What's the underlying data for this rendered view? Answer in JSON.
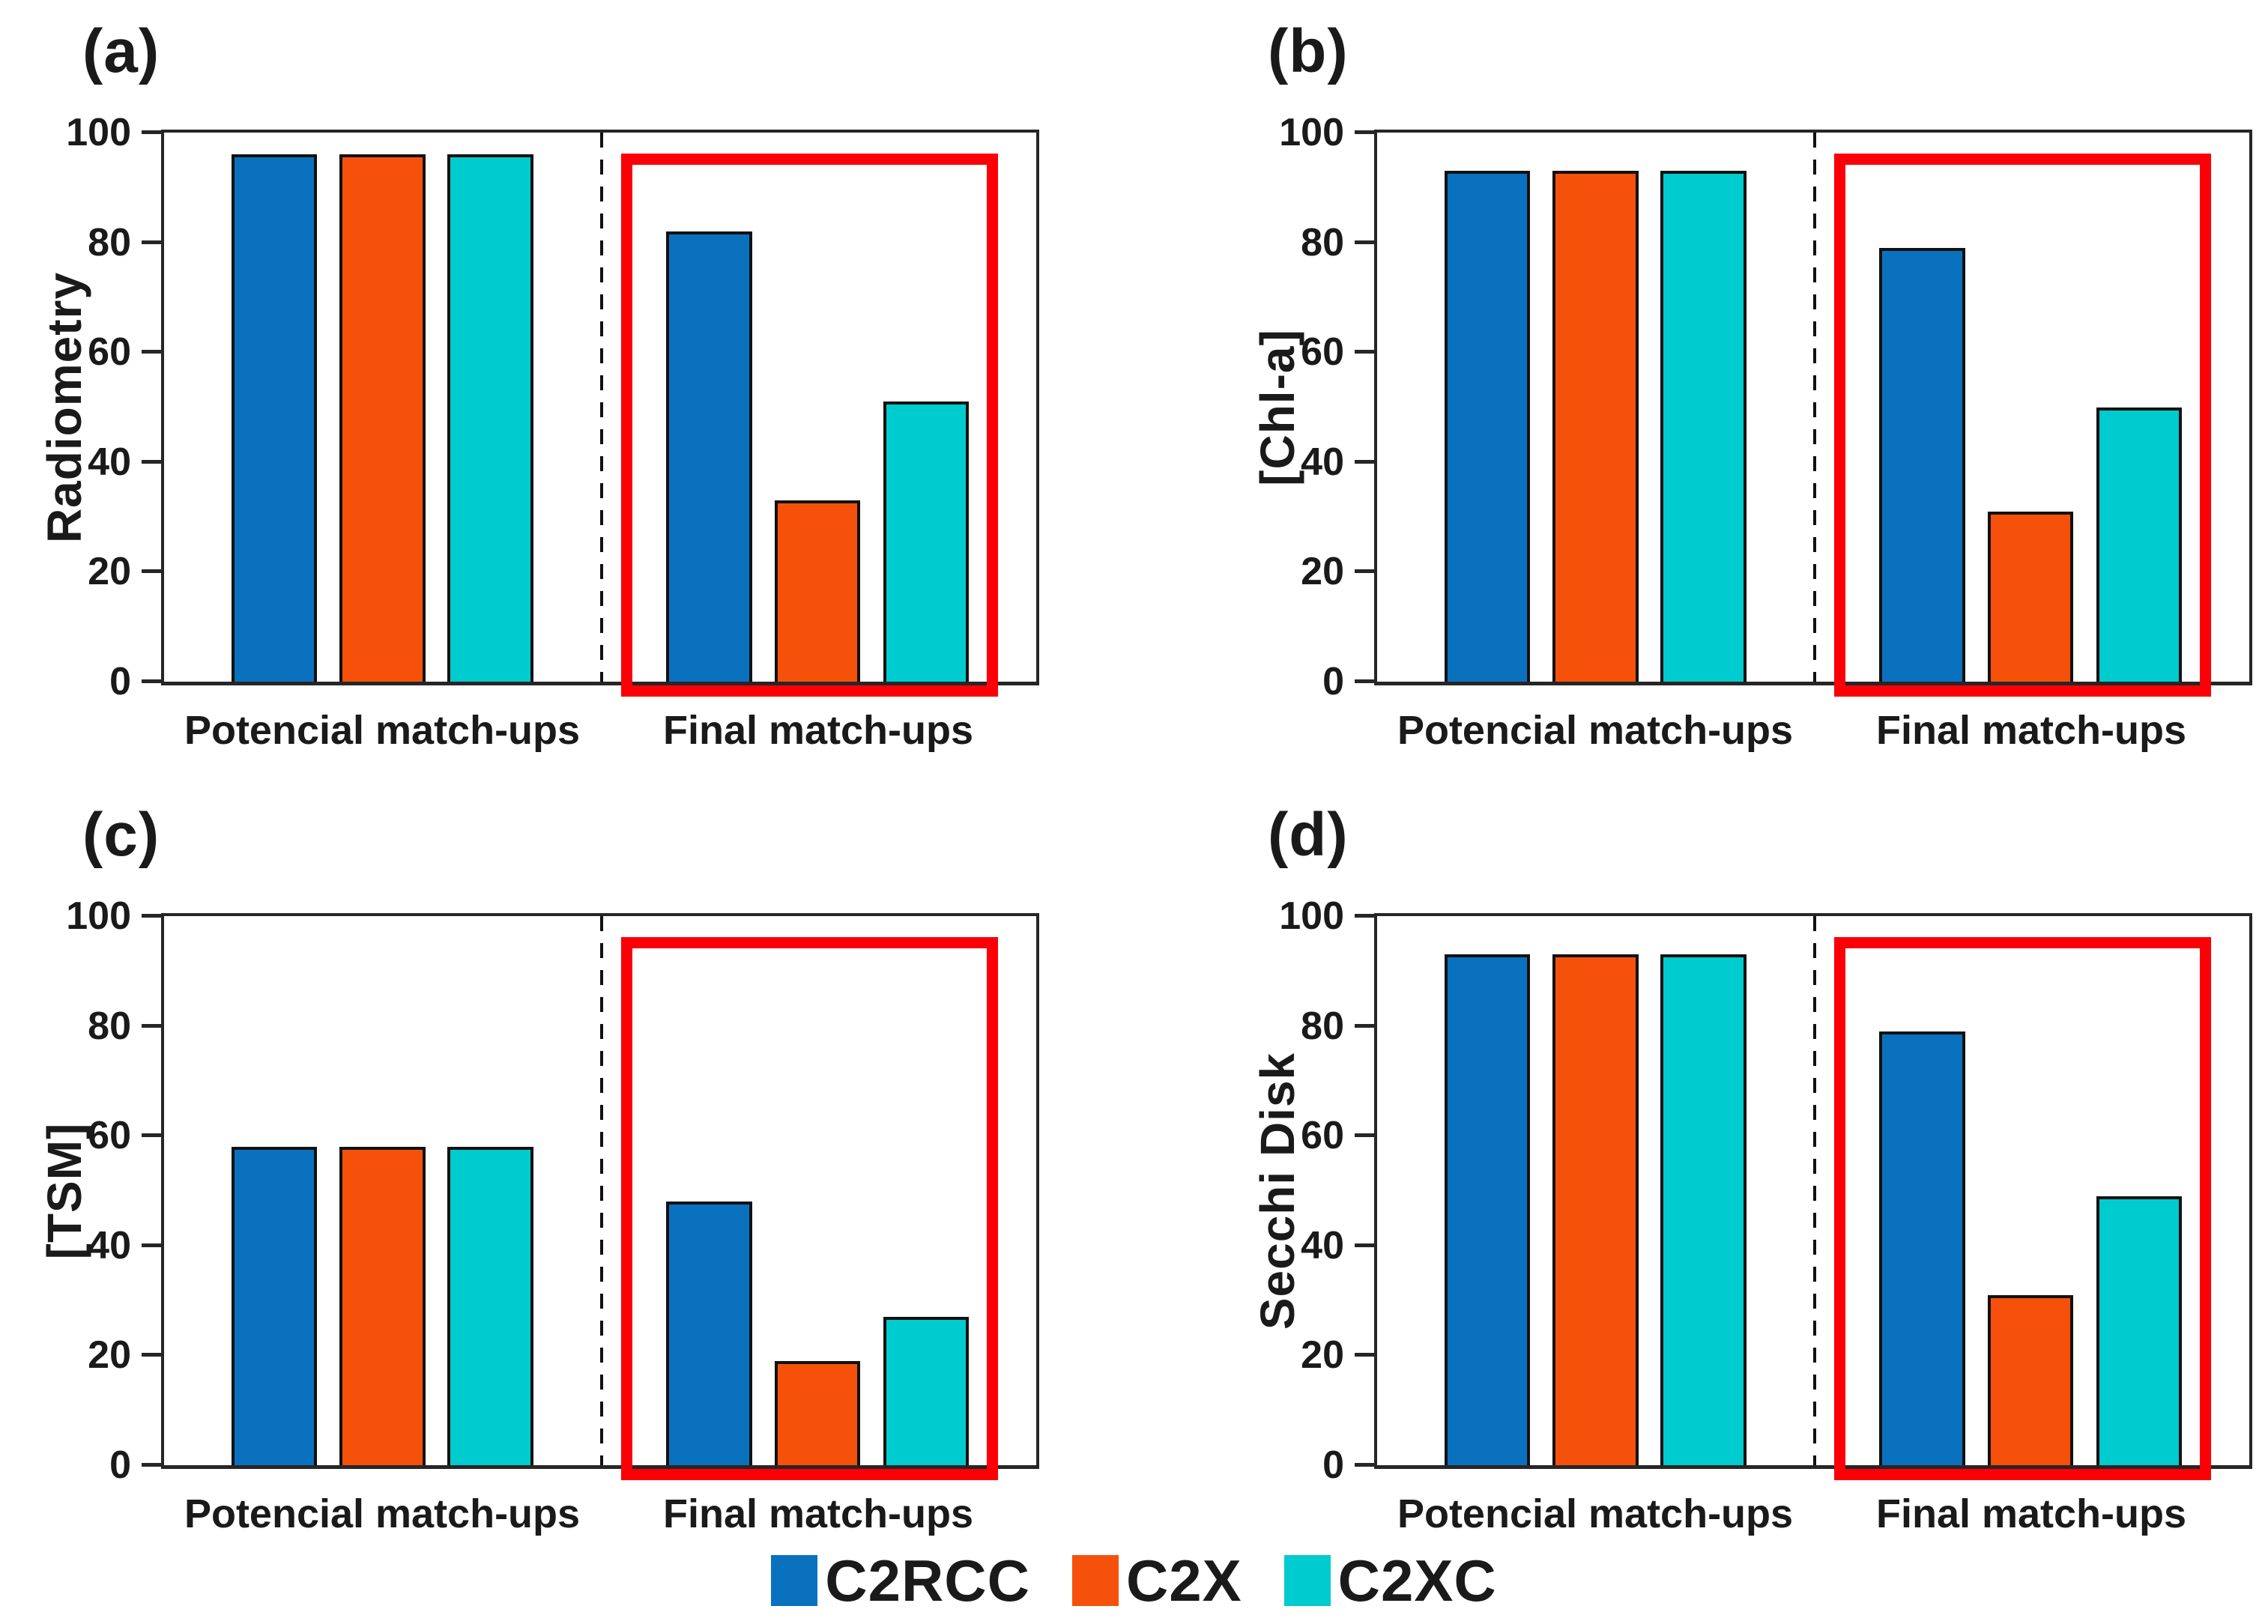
{
  "colors": {
    "c2rcc": "#0A71BF",
    "c2x": "#F6510A",
    "c2xc": "#00CBCE",
    "highlight_red": "#FB0006",
    "axis": "#262626",
    "text": "#1a1a1a"
  },
  "legend": {
    "entries": [
      {
        "label": "C2RCC",
        "color_key": "c2rcc"
      },
      {
        "label": "C2X",
        "color_key": "c2x"
      },
      {
        "label": "C2XC",
        "color_key": "c2xc"
      }
    ]
  },
  "chart_data": [
    {
      "type": "bar",
      "panel_label": "(a)",
      "ylabel": "Radiometry",
      "ylim": [
        0,
        100
      ],
      "yticks": [
        0,
        20,
        40,
        60,
        80,
        100
      ],
      "grid": false,
      "legend_position": "bottom-center-shared",
      "categories": [
        "Potencial match-ups",
        "Final match-ups"
      ],
      "series": [
        {
          "name": "C2RCC",
          "color_key": "c2rcc",
          "values": [
            96,
            82
          ]
        },
        {
          "name": "C2X",
          "color_key": "c2x",
          "values": [
            96,
            33
          ]
        },
        {
          "name": "C2XC",
          "color_key": "c2xc",
          "values": [
            96,
            51
          ]
        }
      ],
      "annotations": [
        {
          "type": "red-highlight-box",
          "category": "Final match-ups",
          "y_top": 96
        }
      ]
    },
    {
      "type": "bar",
      "panel_label": "(b)",
      "ylabel": "[Chl-a]",
      "ylim": [
        0,
        100
      ],
      "yticks": [
        0,
        20,
        40,
        60,
        80,
        100
      ],
      "grid": false,
      "legend_position": "bottom-center-shared",
      "categories": [
        "Potencial match-ups",
        "Final match-ups"
      ],
      "series": [
        {
          "name": "C2RCC",
          "color_key": "c2rcc",
          "values": [
            93,
            79
          ]
        },
        {
          "name": "C2X",
          "color_key": "c2x",
          "values": [
            93,
            31
          ]
        },
        {
          "name": "C2XC",
          "color_key": "c2xc",
          "values": [
            93,
            50
          ]
        }
      ],
      "annotations": [
        {
          "type": "red-highlight-box",
          "category": "Final match-ups",
          "y_top": 96
        }
      ]
    },
    {
      "type": "bar",
      "panel_label": "(c)",
      "ylabel": "[TSM]",
      "ylim": [
        0,
        100
      ],
      "yticks": [
        0,
        20,
        40,
        60,
        80,
        100
      ],
      "grid": false,
      "legend_position": "bottom-center-shared",
      "categories": [
        "Potencial match-ups",
        "Final match-ups"
      ],
      "series": [
        {
          "name": "C2RCC",
          "color_key": "c2rcc",
          "values": [
            58,
            48
          ]
        },
        {
          "name": "C2X",
          "color_key": "c2x",
          "values": [
            58,
            19
          ]
        },
        {
          "name": "C2XC",
          "color_key": "c2xc",
          "values": [
            58,
            27
          ]
        }
      ],
      "annotations": [
        {
          "type": "red-highlight-box",
          "category": "Final match-ups",
          "y_top": 96
        }
      ]
    },
    {
      "type": "bar",
      "panel_label": "(d)",
      "ylabel": "Secchi Disk",
      "ylim": [
        0,
        100
      ],
      "yticks": [
        0,
        20,
        40,
        60,
        80,
        100
      ],
      "grid": false,
      "legend_position": "bottom-center-shared",
      "categories": [
        "Potencial match-ups",
        "Final match-ups"
      ],
      "series": [
        {
          "name": "C2RCC",
          "color_key": "c2rcc",
          "values": [
            93,
            79
          ]
        },
        {
          "name": "C2X",
          "color_key": "c2x",
          "values": [
            93,
            31
          ]
        },
        {
          "name": "C2XC",
          "color_key": "c2xc",
          "values": [
            93,
            49
          ]
        }
      ],
      "annotations": [
        {
          "type": "red-highlight-box",
          "category": "Final match-ups",
          "y_top": 96
        }
      ]
    }
  ]
}
